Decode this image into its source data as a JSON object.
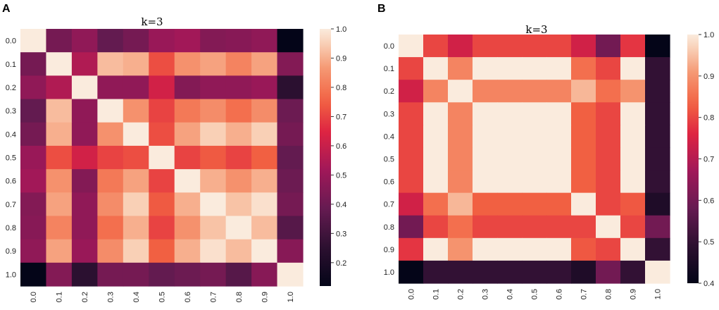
{
  "chart_data": [
    {
      "panel": "A",
      "type": "heatmap",
      "title": "k=3",
      "xticks": [
        "0.0",
        "0.1",
        "0.2",
        "0.3",
        "0.4",
        "0.5",
        "0.6",
        "0.7",
        "0.8",
        "0.9",
        "1.0"
      ],
      "yticks": [
        "0.0",
        "0.1",
        "0.2",
        "0.3",
        "0.4",
        "0.5",
        "0.6",
        "0.7",
        "0.8",
        "0.9",
        "1.0"
      ],
      "vmin": 0.12,
      "vmax": 1.0,
      "colorbar_ticks": [
        0.2,
        0.3,
        0.4,
        0.5,
        0.6,
        0.7,
        0.8,
        0.9,
        1.0
      ],
      "colorbar_labels": [
        "0.2",
        "0.3",
        "0.4",
        "0.5",
        "0.6",
        "0.7",
        "0.8",
        "0.9",
        "1.0"
      ],
      "matrix": [
        [
          1.0,
          0.42,
          0.48,
          0.38,
          0.42,
          0.5,
          0.52,
          0.45,
          0.46,
          0.48,
          0.12
        ],
        [
          0.42,
          1.0,
          0.55,
          0.92,
          0.9,
          0.72,
          0.85,
          0.88,
          0.82,
          0.88,
          0.45
        ],
        [
          0.48,
          0.55,
          1.0,
          0.48,
          0.48,
          0.62,
          0.45,
          0.48,
          0.48,
          0.5,
          0.25
        ],
        [
          0.38,
          0.92,
          0.48,
          1.0,
          0.85,
          0.7,
          0.8,
          0.84,
          0.78,
          0.84,
          0.4
        ],
        [
          0.42,
          0.9,
          0.48,
          0.85,
          1.0,
          0.72,
          0.88,
          0.95,
          0.9,
          0.95,
          0.42
        ],
        [
          0.5,
          0.72,
          0.62,
          0.7,
          0.72,
          1.0,
          0.7,
          0.74,
          0.7,
          0.75,
          0.38
        ],
        [
          0.52,
          0.85,
          0.45,
          0.8,
          0.88,
          0.7,
          1.0,
          0.9,
          0.85,
          0.9,
          0.4
        ],
        [
          0.45,
          0.88,
          0.48,
          0.84,
          0.95,
          0.74,
          0.9,
          1.0,
          0.93,
          0.98,
          0.42
        ],
        [
          0.46,
          0.82,
          0.48,
          0.78,
          0.9,
          0.7,
          0.85,
          0.93,
          1.0,
          0.92,
          0.35
        ],
        [
          0.48,
          0.88,
          0.5,
          0.84,
          0.95,
          0.75,
          0.9,
          0.98,
          0.92,
          1.0,
          0.46
        ],
        [
          0.12,
          0.45,
          0.25,
          0.42,
          0.42,
          0.38,
          0.4,
          0.42,
          0.35,
          0.46,
          1.0
        ]
      ]
    },
    {
      "panel": "B",
      "type": "heatmap",
      "title": "k=3",
      "xticks": [
        "0.0",
        "0.1",
        "0.2",
        "0.3",
        "0.4",
        "0.5",
        "0.6",
        "0.7",
        "0.8",
        "0.9",
        "1.0"
      ],
      "yticks": [
        "0.0",
        "0.1",
        "0.2",
        "0.3",
        "0.4",
        "0.5",
        "0.6",
        "0.7",
        "0.8",
        "0.9",
        "1.0"
      ],
      "vmin": 0.4,
      "vmax": 1.0,
      "colorbar_ticks": [
        0.4,
        0.5,
        0.6,
        0.7,
        0.8,
        0.9,
        1.0
      ],
      "colorbar_labels": [
        "0.4",
        "0.5",
        "0.6",
        "0.7",
        "0.8",
        "0.9",
        "1.0"
      ],
      "matrix": [
        [
          1.0,
          0.8,
          0.74,
          0.8,
          0.8,
          0.8,
          0.8,
          0.74,
          0.6,
          0.78,
          0.4
        ],
        [
          0.8,
          1.0,
          0.88,
          1.0,
          1.0,
          1.0,
          1.0,
          0.85,
          0.8,
          1.0,
          0.5
        ],
        [
          0.74,
          0.88,
          1.0,
          0.88,
          0.88,
          0.88,
          0.88,
          0.94,
          0.85,
          0.9,
          0.5
        ],
        [
          0.8,
          1.0,
          0.88,
          1.0,
          1.0,
          1.0,
          1.0,
          0.83,
          0.8,
          1.0,
          0.5
        ],
        [
          0.8,
          1.0,
          0.88,
          1.0,
          1.0,
          1.0,
          1.0,
          0.83,
          0.8,
          1.0,
          0.5
        ],
        [
          0.8,
          1.0,
          0.88,
          1.0,
          1.0,
          1.0,
          1.0,
          0.83,
          0.8,
          1.0,
          0.5
        ],
        [
          0.8,
          1.0,
          0.88,
          1.0,
          1.0,
          1.0,
          1.0,
          0.83,
          0.8,
          1.0,
          0.5
        ],
        [
          0.74,
          0.85,
          0.94,
          0.83,
          0.83,
          0.83,
          0.83,
          1.0,
          0.8,
          0.82,
          0.46
        ],
        [
          0.6,
          0.8,
          0.85,
          0.8,
          0.8,
          0.8,
          0.8,
          0.8,
          1.0,
          0.8,
          0.6
        ],
        [
          0.78,
          1.0,
          0.9,
          1.0,
          1.0,
          1.0,
          1.0,
          0.82,
          0.8,
          1.0,
          0.5
        ],
        [
          0.4,
          0.5,
          0.5,
          0.5,
          0.5,
          0.5,
          0.5,
          0.46,
          0.6,
          0.5,
          1.0
        ]
      ]
    }
  ]
}
